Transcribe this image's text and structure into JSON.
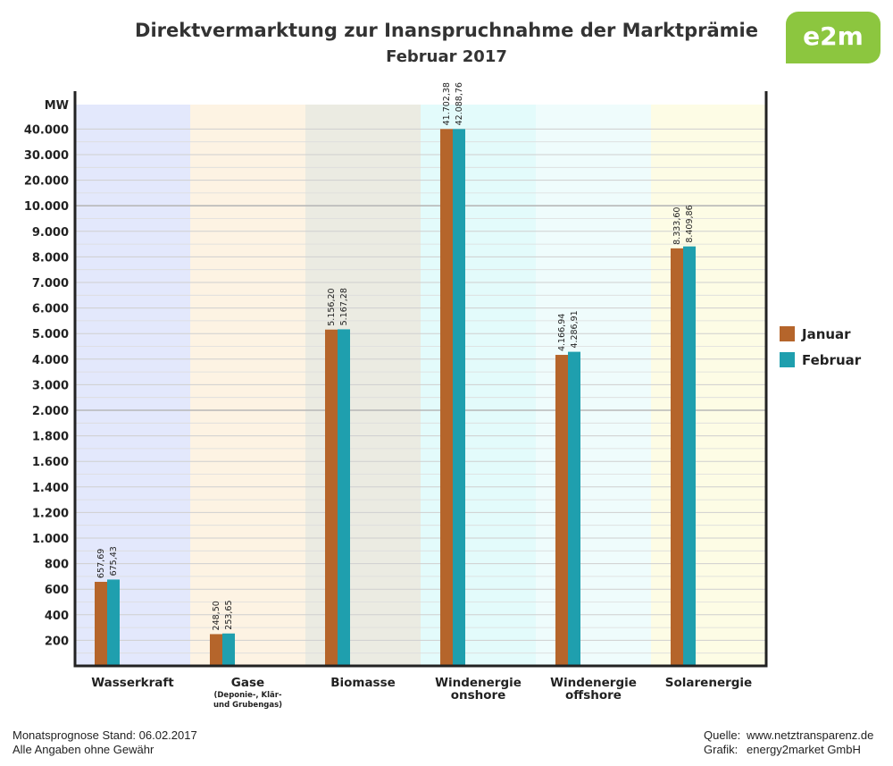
{
  "header": {
    "title": "Direktvermarktung zur Inanspruchnahme der Marktprämie",
    "subtitle": "Februar 2017",
    "logo_text": "e2m"
  },
  "chart_data": {
    "type": "bar",
    "ylabel": "MW",
    "y_ticks": [
      "200",
      "400",
      "600",
      "800",
      "1.000",
      "1.200",
      "1.400",
      "1.600",
      "1.800",
      "2.000",
      "3.000",
      "4.000",
      "5.000",
      "6.000",
      "7.000",
      "8.000",
      "9.000",
      "10.000",
      "20.000",
      "30.000",
      "40.000"
    ],
    "categories": [
      {
        "name": "Wasserkraft",
        "sub": []
      },
      {
        "name": "Gase",
        "sub": [
          "(Deponie-, Klär-",
          "und Grubengas)"
        ]
      },
      {
        "name": "Biomasse",
        "sub": []
      },
      {
        "name": "Windenergie",
        "sub": [
          "onshore"
        ]
      },
      {
        "name": "Windenergie",
        "sub": [
          "offshore"
        ]
      },
      {
        "name": "Solarenergie",
        "sub": []
      }
    ],
    "category_colors": [
      "#e3e8fc",
      "#fdf3e3",
      "#ebebe2",
      "#e3fbfb",
      "#effcfc",
      "#fdfce5"
    ],
    "series": [
      {
        "name": "Januar",
        "color": "#b5652b",
        "values": [
          657.69,
          248.5,
          5156.2,
          41702.38,
          4166.94,
          8333.6
        ],
        "labels": [
          "657,69",
          "248,50",
          "5.156,20",
          "41.702,38",
          "4.166,94",
          "8.333,60"
        ]
      },
      {
        "name": "Februar",
        "color": "#1f9fae",
        "values": [
          675.43,
          253.65,
          5167.28,
          42088.76,
          4286.91,
          8409.86
        ],
        "labels": [
          "675,43",
          "253,65",
          "5.167,28",
          "42.088,76",
          "4.286,91",
          "8.409,86"
        ]
      }
    ],
    "legend_position": "right",
    "grid": true
  },
  "footer": {
    "left_line1": "Monatsprognose Stand: 06.02.2017",
    "left_line2": "Alle Angaben ohne Gewähr",
    "source_label": "Quelle:",
    "source_value": "www.netztransparenz.de",
    "graphic_label": "Grafik:",
    "graphic_value": "energy2market GmbH"
  }
}
